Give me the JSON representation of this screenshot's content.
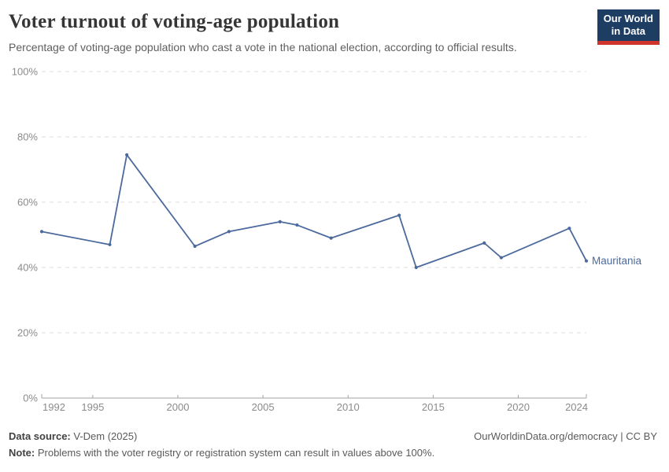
{
  "header": {
    "title": "Voter turnout of voting-age population",
    "subtitle": "Percentage of voting-age population who cast a vote in the national election, according to official results.",
    "logo": {
      "line1": "Our World",
      "line2": "in Data"
    }
  },
  "chart_data": {
    "type": "line",
    "title": "Voter turnout of voting-age population",
    "xlabel": "",
    "ylabel": "",
    "xlim": [
      1992,
      2024
    ],
    "ylim": [
      0,
      100
    ],
    "x_ticks": [
      1992,
      1995,
      2000,
      2005,
      2010,
      2015,
      2020,
      2024
    ],
    "y_ticks": [
      0,
      20,
      40,
      60,
      80,
      100
    ],
    "y_tick_suffix": "%",
    "grid": "horizontal-dashed",
    "legend_position": "end-of-line-label",
    "series": [
      {
        "name": "Mauritania",
        "color": "#4C6A9C",
        "x": [
          1992,
          1996,
          1997,
          2001,
          2003,
          2006,
          2007,
          2009,
          2013,
          2014,
          2018,
          2019,
          2023,
          2024
        ],
        "values": [
          51,
          47,
          74.5,
          46.5,
          51,
          54,
          53,
          49,
          56,
          40,
          47.5,
          43,
          52,
          42
        ]
      }
    ],
    "colors": {
      "line": "#4C6A9C",
      "gridline": "#dcdcdc",
      "axis": "#a3a3a3",
      "tick_label": "#8b8b8b"
    }
  },
  "footer": {
    "source_label": "Data source:",
    "source_value": "V-Dem (2025)",
    "rights": "OurWorldinData.org/democracy | CC BY",
    "note_label": "Note:",
    "note_value": "Problems with the voter registry or registration system can result in values above 100%."
  }
}
